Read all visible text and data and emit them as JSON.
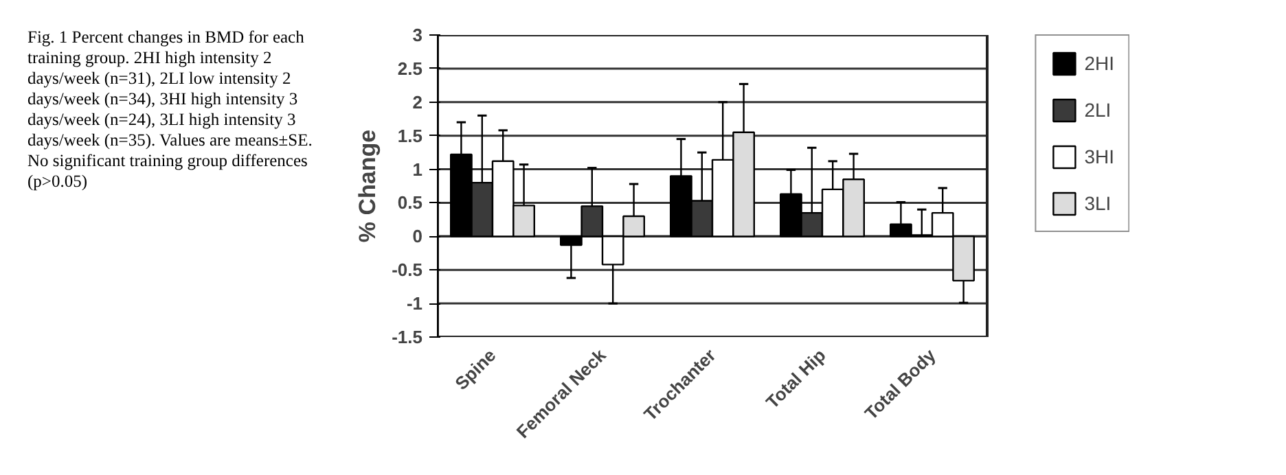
{
  "chart_data": {
    "type": "bar",
    "ylabel": "% Change",
    "categories": [
      "Spine",
      "Femoral Neck",
      "Trochanter",
      "Total Hip",
      "Total Body"
    ],
    "series": [
      {
        "name": "2HI",
        "color": "#000000",
        "values": [
          1.22,
          -0.13,
          0.9,
          0.63,
          0.18
        ],
        "errors": [
          [
            1.22,
            1.7
          ],
          [
            -0.62,
            -0.13
          ],
          [
            0.9,
            1.45
          ],
          [
            0.63,
            0.99
          ],
          [
            0.18,
            0.51
          ]
        ]
      },
      {
        "name": "2LI",
        "color": "#3a3a3a",
        "values": [
          0.8,
          0.45,
          0.53,
          0.35,
          0.02
        ],
        "errors": [
          [
            0.8,
            1.8
          ],
          [
            0.45,
            1.02
          ],
          [
            0.53,
            1.25
          ],
          [
            0.35,
            1.32
          ],
          [
            0.02,
            0.4
          ]
        ]
      },
      {
        "name": "3HI",
        "color": "#ffffff",
        "values": [
          1.12,
          -0.42,
          1.14,
          0.7,
          0.35
        ],
        "errors": [
          [
            1.12,
            1.58
          ],
          [
            -1.0,
            -0.42
          ],
          [
            1.14,
            2.0
          ],
          [
            0.7,
            1.12
          ],
          [
            0.35,
            0.72
          ]
        ]
      },
      {
        "name": "3LI",
        "color": "#dcdcdc",
        "values": [
          0.46,
          0.3,
          1.55,
          0.85,
          -0.66
        ],
        "errors": [
          [
            0.46,
            1.07
          ],
          [
            0.3,
            0.78
          ],
          [
            1.55,
            2.27
          ],
          [
            0.85,
            1.23
          ],
          [
            -0.99,
            -0.66
          ]
        ]
      }
    ],
    "ylim": [
      -1.5,
      3
    ],
    "yticks": [
      -1.5,
      -1,
      -0.5,
      0,
      0.5,
      1,
      1.5,
      2,
      2.5,
      3
    ],
    "grid": "y",
    "legend": "right",
    "annotations": [
      "Fig. 1  Percent changes in BMD for each training group. 2HI high intensity 2 days/week (n=31), 2LI low intensity 2 days/week (n=34), 3HI high intensity 3 days/week (n=24), 3LI high intensity 3 days/week (n=35). Values are means±SE. No significant training group differences (p>0.05)"
    ]
  }
}
